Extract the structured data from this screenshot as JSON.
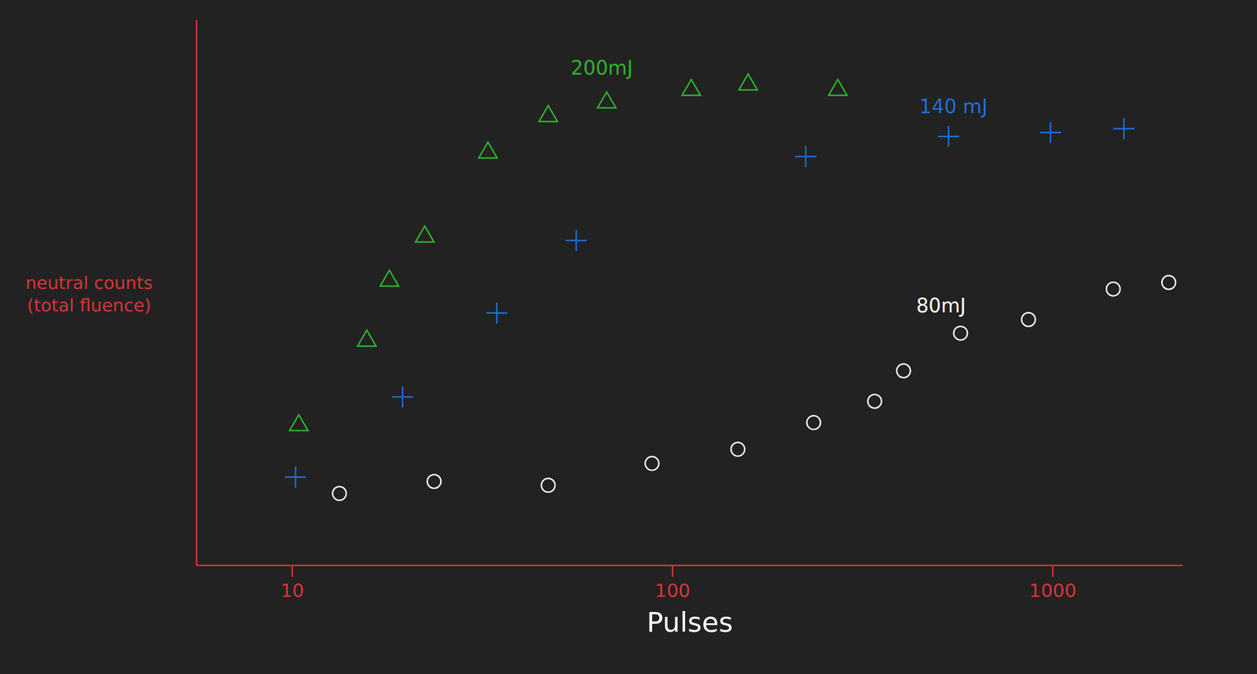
{
  "chart_data": {
    "type": "scatter",
    "x_label": "Pulses",
    "y_label": "neutral counts (total fluence)",
    "log": "x",
    "xlim": [
      5.6,
      2200
    ],
    "xticks": [
      10,
      100,
      1000
    ],
    "ylim": [
      0,
      100
    ],
    "yticks": [],
    "tick_labels": "x",
    "series": [
      {
        "name": "200mJ",
        "color": "#2db52d",
        "marker": "triangle",
        "x": [
          10.4,
          15.7,
          18,
          22.3,
          32.7,
          47.1,
          67.1,
          112,
          158,
          272
        ],
        "values": [
          25.7,
          41.2,
          52.2,
          60.3,
          75.7,
          82.4,
          84.9,
          87.2,
          88.2,
          87.2
        ]
      },
      {
        "name": "140 mJ",
        "color": "#1e6fd9",
        "marker": "plus",
        "x": [
          10.2,
          19.5,
          34.5,
          55.8,
          224,
          532,
          986,
          1538
        ],
        "values": [
          16.2,
          30.9,
          46.3,
          59.6,
          75,
          78.7,
          79.4,
          80.1
        ]
      },
      {
        "name": "80mJ",
        "color": "#ffffff",
        "marker": "circle",
        "x": [
          13.3,
          23.6,
          47.1,
          88.3,
          148.5,
          235,
          340,
          405,
          572,
          863,
          1442,
          2018
        ],
        "values": [
          13.2,
          15.4,
          14.7,
          18.7,
          21.3,
          26.2,
          30.1,
          35.7,
          42.6,
          45.1,
          50.7,
          51.9
        ]
      }
    ]
  }
}
